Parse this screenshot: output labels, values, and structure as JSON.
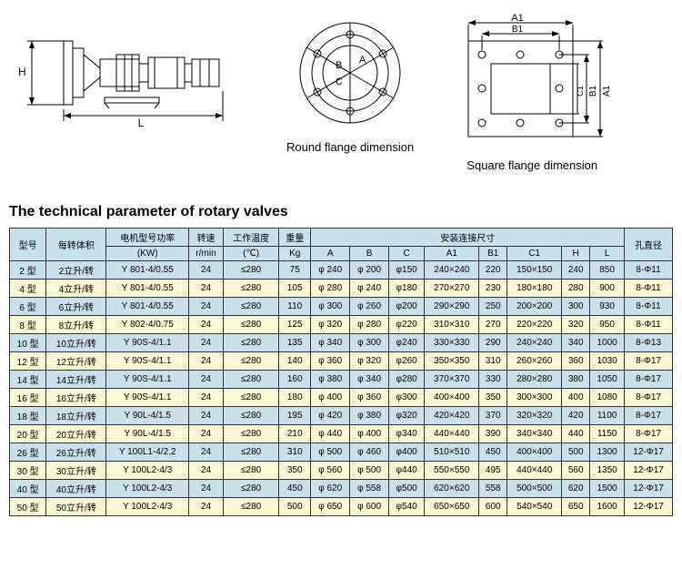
{
  "diagrams": {
    "side_label_H": "H",
    "side_label_L": "L",
    "round_caption": "Round flange dimension",
    "round_labels": {
      "A": "A",
      "B": "B",
      "C": "C"
    },
    "square_caption": "Square flange dimension",
    "square_labels": {
      "A1": "A1",
      "B1": "B1",
      "A1v": "A1",
      "B1v": "B1",
      "C1": "C1"
    }
  },
  "title": "The technical parameter of rotary valves",
  "table": {
    "group_headers": {
      "model": "型号",
      "volume": "每转体积",
      "motor": "电机型号功率",
      "speed": "转速",
      "temp": "工作温度",
      "weight": "重量",
      "install": "安装连接尺寸",
      "hole": "孔直径"
    },
    "sub_headers": {
      "motor_unit": "(KW)",
      "speed_unit": "r/min",
      "temp_unit": "(℃)",
      "weight_unit": "Kg",
      "A": "A",
      "B": "B",
      "C": "C",
      "A1": "A1",
      "B1": "B1",
      "C1": "C1",
      "H": "H",
      "L": "L"
    },
    "rows": [
      {
        "model": "2 型",
        "vol": "2立升/转",
        "motor": "Y 801-4/0.55",
        "speed": "24",
        "temp": "≤280",
        "wt": "75",
        "A": "φ 240",
        "B": "φ 200",
        "C": "φ150",
        "A1": "240×240",
        "B1": "220",
        "C1": "150×150",
        "H": "240",
        "L": "850",
        "hole": "8-Φ11"
      },
      {
        "model": "4 型",
        "vol": "4立升/转",
        "motor": "Y 801-4/0.55",
        "speed": "24",
        "temp": "≤280",
        "wt": "105",
        "A": "φ 280",
        "B": "φ 240",
        "C": "φ180",
        "A1": "270×270",
        "B1": "230",
        "C1": "180×180",
        "H": "280",
        "L": "900",
        "hole": "8-Φ11"
      },
      {
        "model": "6 型",
        "vol": "6立升/转",
        "motor": "Y 801-4/0.55",
        "speed": "24",
        "temp": "≤280",
        "wt": "110",
        "A": "φ 300",
        "B": "φ 260",
        "C": "φ200",
        "A1": "290×290",
        "B1": "250",
        "C1": "200×200",
        "H": "300",
        "L": "930",
        "hole": "8-Φ11"
      },
      {
        "model": "8 型",
        "vol": "8立升/转",
        "motor": "Y 802-4/0.75",
        "speed": "24",
        "temp": "≤280",
        "wt": "125",
        "A": "φ 320",
        "B": "φ 280",
        "C": "φ220",
        "A1": "310×310",
        "B1": "270",
        "C1": "220×220",
        "H": "320",
        "L": "950",
        "hole": "8-Φ11"
      },
      {
        "model": "10 型",
        "vol": "10立升/转",
        "motor": "Y 90S-4/1.1",
        "speed": "24",
        "temp": "≤280",
        "wt": "135",
        "A": "φ 340",
        "B": "φ 300",
        "C": "φ240",
        "A1": "330×330",
        "B1": "290",
        "C1": "240×240",
        "H": "340",
        "L": "1000",
        "hole": "8-Φ13"
      },
      {
        "model": "12 型",
        "vol": "12立升/转",
        "motor": "Y 90S-4/1.1",
        "speed": "24",
        "temp": "≤280",
        "wt": "140",
        "A": "φ 360",
        "B": "φ 320",
        "C": "φ260",
        "A1": "350×350",
        "B1": "310",
        "C1": "260×260",
        "H": "360",
        "L": "1030",
        "hole": "8-Φ17"
      },
      {
        "model": "14 型",
        "vol": "14立升/转",
        "motor": "Y 90S-4/1.1",
        "speed": "24",
        "temp": "≤280",
        "wt": "160",
        "A": "φ 380",
        "B": "φ 340",
        "C": "φ280",
        "A1": "370×370",
        "B1": "330",
        "C1": "280×280",
        "H": "380",
        "L": "1050",
        "hole": "8-Φ17"
      },
      {
        "model": "16 型",
        "vol": "16立升/转",
        "motor": "Y 90S-4/1.1",
        "speed": "24",
        "temp": "≤280",
        "wt": "180",
        "A": "φ 400",
        "B": "φ 360",
        "C": "φ300",
        "A1": "400×400",
        "B1": "350",
        "C1": "300×300",
        "H": "400",
        "L": "1080",
        "hole": "8-Φ17"
      },
      {
        "model": "18 型",
        "vol": "18立升/转",
        "motor": "Y 90L-4/1.5",
        "speed": "24",
        "temp": "≤280",
        "wt": "195",
        "A": "φ 420",
        "B": "φ 380",
        "C": "φ320",
        "A1": "420×420",
        "B1": "370",
        "C1": "320×320",
        "H": "420",
        "L": "1100",
        "hole": "8-Φ17"
      },
      {
        "model": "20 型",
        "vol": "20立升/转",
        "motor": "Y 90L-4/1.5",
        "speed": "24",
        "temp": "≤280",
        "wt": "210",
        "A": "φ 440",
        "B": "φ 400",
        "C": "φ340",
        "A1": "440×440",
        "B1": "390",
        "C1": "340×340",
        "H": "440",
        "L": "1150",
        "hole": "8-Φ17"
      },
      {
        "model": "26 型",
        "vol": "26立升/转",
        "motor": "Y 100L1-4/2.2",
        "speed": "24",
        "temp": "≤280",
        "wt": "310",
        "A": "φ 500",
        "B": "φ 460",
        "C": "φ400",
        "A1": "510×510",
        "B1": "450",
        "C1": "400×400",
        "H": "500",
        "L": "1300",
        "hole": "12-Φ17"
      },
      {
        "model": "30 型",
        "vol": "30立升/转",
        "motor": "Y 100L2-4/3",
        "speed": "24",
        "temp": "≤280",
        "wt": "350",
        "A": "φ 560",
        "B": "φ 500",
        "C": "φ440",
        "A1": "550×550",
        "B1": "495",
        "C1": "440×440",
        "H": "560",
        "L": "1350",
        "hole": "12-Φ17"
      },
      {
        "model": "40 型",
        "vol": "40立升/转",
        "motor": "Y 100L2-4/3",
        "speed": "24",
        "temp": "≤280",
        "wt": "450",
        "A": "φ 620",
        "B": "φ 558",
        "C": "φ500",
        "A1": "620×620",
        "B1": "558",
        "C1": "500×500",
        "H": "620",
        "L": "1500",
        "hole": "12-Φ17"
      },
      {
        "model": "50 型",
        "vol": "50立升/转",
        "motor": "Y 100L2-4/3",
        "speed": "24",
        "temp": "≤280",
        "wt": "500",
        "A": "φ 650",
        "B": "φ 600",
        "C": "φ540",
        "A1": "650×650",
        "B1": "600",
        "C1": "540×540",
        "H": "650",
        "L": "1600",
        "hole": "12-Φ17"
      }
    ]
  }
}
